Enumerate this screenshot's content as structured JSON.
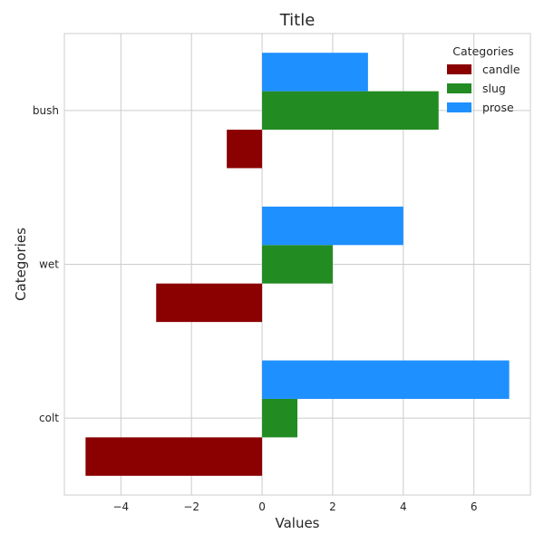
{
  "chart_data": {
    "type": "bar",
    "orientation": "horizontal",
    "title": "Title",
    "xlabel": "Values",
    "ylabel": "Categories",
    "categories": [
      "colt",
      "wet",
      "bush"
    ],
    "series": [
      {
        "name": "candle",
        "values": [
          -5,
          -3,
          -1
        ],
        "color": "#8b0000"
      },
      {
        "name": "slug",
        "values": [
          1,
          2,
          5
        ],
        "color": "#228b22"
      },
      {
        "name": "prose",
        "values": [
          7,
          4,
          3
        ],
        "color": "#1e90ff"
      }
    ],
    "xlim": [
      -5.6,
      7.6
    ],
    "xticks": [
      -4,
      -2,
      0,
      2,
      4,
      6
    ],
    "xtick_labels": [
      "−4",
      "−2",
      "0",
      "2",
      "4",
      "6"
    ],
    "grid": true,
    "legend": {
      "title": "Categories",
      "position": "top-right"
    }
  }
}
